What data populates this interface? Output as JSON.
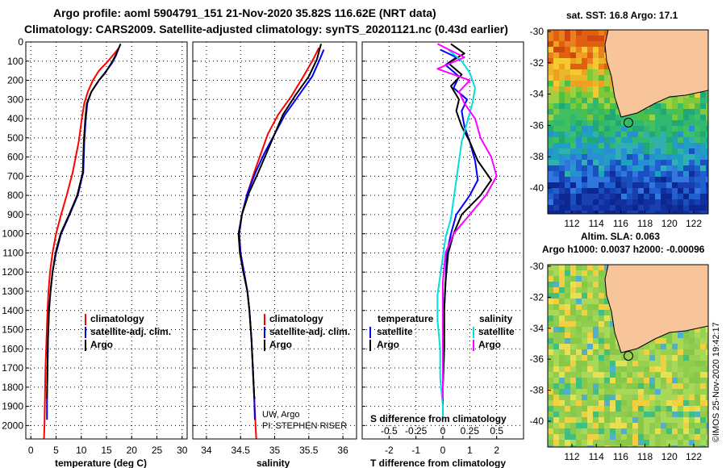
{
  "header": {
    "line1": "Argo profile: aoml 5904791_151 21-Nov-2020 35.82S 116.62E (NRT data)",
    "line2": "Climatology: CARS2009. Satellite-adjusted climatology: synTS_20201121.nc (0.43d earlier)"
  },
  "colors": {
    "climatology": "#ff0000",
    "satellite": "#0000ff",
    "argo": "#000000",
    "sal_satellite": "#00e0e0",
    "sal_argo": "#ff00ff",
    "land": "#f8c49a"
  },
  "depth_axis": {
    "ylim": [
      0,
      2070
    ],
    "ticks": [
      "0",
      "100",
      "200",
      "300",
      "400",
      "500",
      "600",
      "700",
      "800",
      "900",
      "1000",
      "1100",
      "1200",
      "1300",
      "1400",
      "1500",
      "1600",
      "1700",
      "1800",
      "1900",
      "2000"
    ],
    "tick_values": [
      0,
      100,
      200,
      300,
      400,
      500,
      600,
      700,
      800,
      900,
      1000,
      1100,
      1200,
      1300,
      1400,
      1500,
      1600,
      1700,
      1800,
      1900,
      2000
    ]
  },
  "chart_data": [
    {
      "type": "line",
      "id": "temperature",
      "xlabel": "temperature (deg C)",
      "xlim": [
        -1,
        31
      ],
      "xticks": [
        "0",
        "5",
        "10",
        "15",
        "20",
        "25",
        "30"
      ],
      "xtick_values": [
        0,
        5,
        10,
        15,
        20,
        25,
        30
      ],
      "legend": [
        "climatology",
        "satellite-adj. clim.",
        "Argo"
      ],
      "series": [
        {
          "name": "climatology",
          "color": "#ff0000",
          "x": [
            17.5,
            16.6,
            15.3,
            13.5,
            12.3,
            11.3,
            10.6,
            10.1,
            9.5,
            8.3,
            7.1,
            6.0,
            5.0,
            4.3,
            3.8,
            3.5,
            3.3,
            3.1,
            2.9,
            2.8,
            2.7,
            2.6
          ],
          "y": [
            30,
            60,
            100,
            150,
            200,
            260,
            320,
            400,
            520,
            680,
            800,
            900,
            1000,
            1100,
            1200,
            1300,
            1400,
            1550,
            1700,
            1850,
            2000,
            2070
          ]
        },
        {
          "name": "satellite-adj. clim.",
          "color": "#0000ff",
          "x": [
            17.3,
            16.9,
            16.1,
            14.7,
            13.5,
            12.0,
            11.2,
            10.9,
            10.6,
            10.4,
            9.3,
            7.7,
            6.0,
            5.0,
            4.3,
            3.9,
            3.6,
            3.4,
            3.3,
            3.2,
            3.2
          ],
          "y": [
            40,
            70,
            110,
            160,
            200,
            260,
            320,
            400,
            520,
            680,
            800,
            900,
            1000,
            1100,
            1200,
            1300,
            1400,
            1550,
            1700,
            1850,
            1970
          ]
        },
        {
          "name": "Argo",
          "color": "#000000",
          "x": [
            17.8,
            17.0,
            16.2,
            14.8,
            13.5,
            12.0,
            11.1,
            10.8,
            10.5,
            10.3,
            9.2,
            7.6,
            5.9,
            4.9,
            4.3,
            3.9,
            3.6,
            3.4,
            3.3,
            3.2
          ],
          "y": [
            10,
            60,
            100,
            160,
            200,
            260,
            320,
            400,
            520,
            680,
            800,
            900,
            1000,
            1100,
            1200,
            1300,
            1400,
            1550,
            1700,
            1860
          ]
        }
      ]
    },
    {
      "type": "line",
      "id": "salinity",
      "xlabel": "salinity",
      "xlim": [
        33.8,
        36.2
      ],
      "xticks": [
        "34",
        "34.5",
        "35",
        "35.5",
        "36"
      ],
      "xtick_values": [
        34,
        34.5,
        35,
        35.5,
        36
      ],
      "legend": [
        "climatology",
        "satellite-adj. clim.",
        "Argo"
      ],
      "series": [
        {
          "name": "climatology",
          "color": "#ff0000",
          "x": [
            35.65,
            35.55,
            35.42,
            35.25,
            35.05,
            34.9,
            34.8,
            34.7,
            34.6,
            34.52,
            34.48,
            34.5,
            34.55,
            34.6,
            34.63,
            34.66,
            34.68,
            34.7,
            34.72,
            34.73
          ],
          "y": [
            30,
            100,
            180,
            280,
            380,
            480,
            580,
            680,
            790,
            900,
            1000,
            1100,
            1200,
            1300,
            1400,
            1550,
            1700,
            1850,
            2000,
            2070
          ]
        },
        {
          "name": "satellite-adj. clim.",
          "color": "#0000ff",
          "x": [
            35.72,
            35.65,
            35.55,
            35.35,
            35.15,
            35.0,
            34.85,
            34.72,
            34.6,
            34.52,
            34.48,
            34.5,
            34.55,
            34.6,
            34.63,
            34.66,
            34.68,
            34.7,
            34.71
          ],
          "y": [
            40,
            100,
            180,
            280,
            380,
            480,
            580,
            680,
            790,
            900,
            1000,
            1100,
            1200,
            1300,
            1400,
            1550,
            1700,
            1850,
            1970
          ]
        },
        {
          "name": "Argo",
          "color": "#000000",
          "x": [
            35.68,
            35.62,
            35.5,
            35.3,
            35.12,
            35.0,
            34.88,
            34.76,
            34.62,
            34.52,
            34.47,
            34.49,
            34.54,
            34.6,
            34.63,
            34.66,
            34.68,
            34.7,
            34.71
          ],
          "y": [
            10,
            90,
            180,
            280,
            380,
            480,
            580,
            680,
            790,
            900,
            1000,
            1100,
            1200,
            1300,
            1400,
            1550,
            1700,
            1850,
            1860
          ]
        }
      ],
      "annotations": [
        "UW, Argo",
        "PI: STEPHEN RISER"
      ]
    },
    {
      "type": "line",
      "id": "difference",
      "xlabel": "T difference from climatology",
      "xlabel_top": "S difference from climatology",
      "xlim": [
        -3,
        3
      ],
      "xticks": [
        "-2",
        "-1",
        "0",
        "1",
        "2"
      ],
      "xtick_values": [
        -2,
        -1,
        0,
        1,
        2
      ],
      "xticks_top": [
        "-0.5",
        "-0.25",
        "0",
        "0.25",
        "0.5"
      ],
      "legend_left_title": "temperature",
      "legend_right_title": "salinity",
      "legend_left": [
        "satellite",
        "Argo"
      ],
      "legend_right": [
        "satellite",
        "Argo"
      ],
      "series": [
        {
          "name": "T satellite",
          "color": "#0000ff",
          "x": [
            -0.1,
            0.5,
            0.1,
            0.6,
            0.4,
            0.9,
            0.7,
            0.8,
            1.0,
            1.2,
            1.3,
            1.0,
            0.5,
            0.3,
            0.15,
            0.1,
            0.05,
            0.05,
            0.0,
            0.0
          ],
          "y": [
            40,
            80,
            120,
            180,
            240,
            300,
            360,
            440,
            520,
            620,
            720,
            800,
            900,
            1000,
            1100,
            1250,
            1400,
            1600,
            1800,
            1970
          ]
        },
        {
          "name": "T Argo",
          "color": "#000000",
          "x": [
            0.3,
            0.8,
            0.2,
            0.7,
            0.3,
            0.6,
            0.5,
            0.7,
            1.0,
            1.3,
            1.8,
            1.4,
            0.7,
            0.4,
            0.2,
            0.1,
            0.05,
            0.05,
            0.0,
            0.0
          ],
          "y": [
            10,
            60,
            110,
            170,
            230,
            300,
            360,
            440,
            520,
            620,
            720,
            800,
            900,
            1000,
            1100,
            1250,
            1400,
            1600,
            1800,
            1860
          ]
        },
        {
          "name": "S satellite",
          "color": "#00e0e0",
          "x": [
            0.1,
            0.35,
            0.5,
            0.6,
            0.55,
            0.45,
            0.35,
            0.3,
            0.25,
            0.2,
            0.15,
            0.05,
            0.0,
            -0.05,
            -0.1,
            -0.1,
            -0.05,
            -0.05,
            0.0,
            0.0
          ],
          "y": [
            40,
            100,
            160,
            240,
            320,
            420,
            520,
            620,
            720,
            820,
            920,
            1020,
            1120,
            1220,
            1320,
            1450,
            1600,
            1750,
            1900,
            1970
          ]
        },
        {
          "name": "S Argo",
          "color": "#ff00ff",
          "x": [
            -0.1,
            0.4,
            -0.1,
            0.5,
            0.3,
            0.4,
            0.6,
            0.7,
            0.9,
            1.0,
            0.8,
            0.5,
            0.2,
            0.05,
            0.0,
            0.0,
            0.0,
            0.0,
            0.0
          ],
          "y": [
            10,
            80,
            140,
            200,
            260,
            320,
            400,
            500,
            600,
            700,
            800,
            900,
            1000,
            1100,
            1250,
            1400,
            1600,
            1800,
            1860
          ]
        }
      ]
    }
  ],
  "maps": [
    {
      "id": "sst-map",
      "title": "sat. SST: 16.8 Argo: 17.1",
      "xticks": [
        "112",
        "114",
        "116",
        "118",
        "120",
        "122"
      ],
      "yticks": [
        "-30",
        "-32",
        "-34",
        "-36",
        "-38",
        "-40"
      ]
    },
    {
      "id": "sla-map",
      "title1": "Altim. SLA: 0.063",
      "title2": "Argo h1000: 0.0037 h2000: -0.00096",
      "xticks": [
        "112",
        "114",
        "116",
        "118",
        "120",
        "122"
      ],
      "yticks": [
        "-30",
        "-32",
        "-34",
        "-36",
        "-38",
        "-40"
      ]
    }
  ],
  "footer": {
    "stamp": "©IMOS 25-Nov-2020 19:42:17"
  }
}
